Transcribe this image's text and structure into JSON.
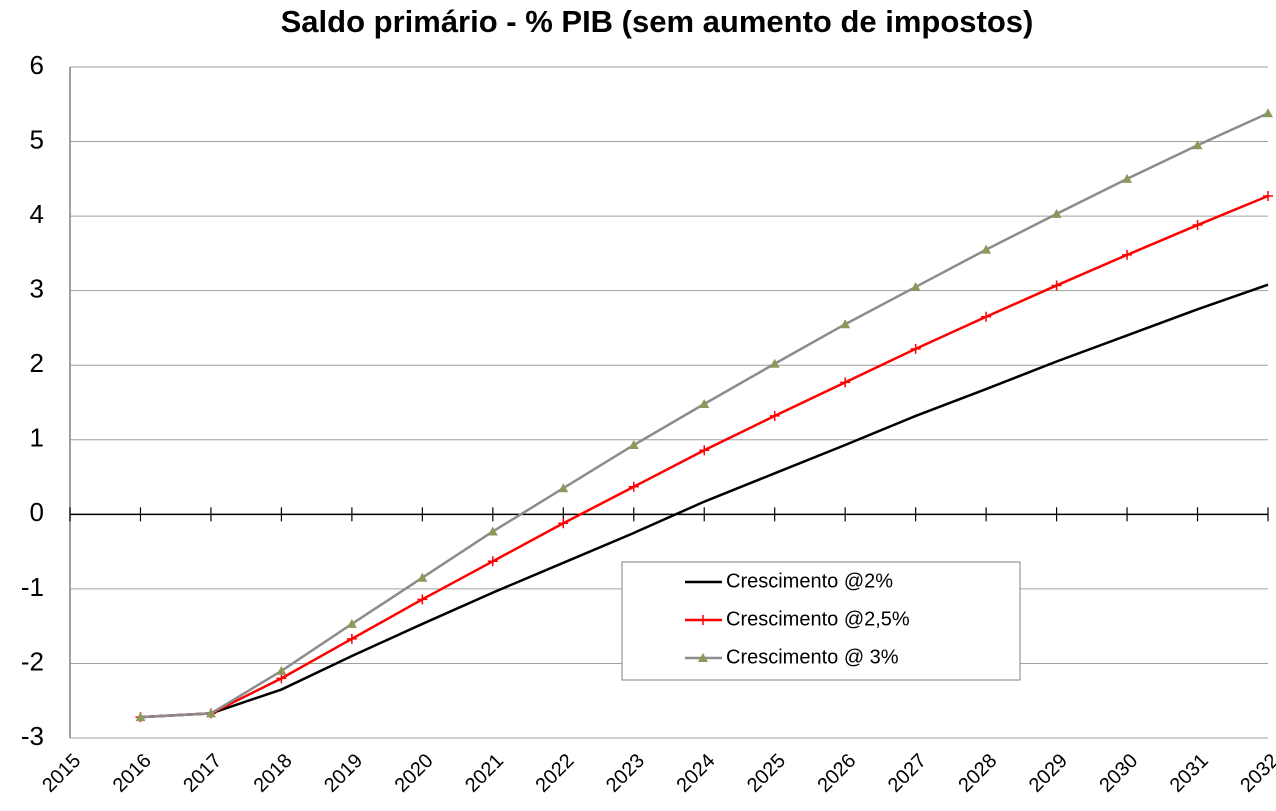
{
  "chart_data": {
    "type": "line",
    "title": "Saldo primário - % PIB (sem aumento de impostos)",
    "x": [
      2016,
      2017,
      2018,
      2019,
      2020,
      2021,
      2022,
      2023,
      2024,
      2025,
      2026,
      2027,
      2028,
      2029,
      2030,
      2031,
      2032
    ],
    "xlim": [
      2015,
      2032
    ],
    "xticks": [
      2015,
      2016,
      2017,
      2018,
      2019,
      2020,
      2021,
      2022,
      2023,
      2024,
      2025,
      2026,
      2027,
      2028,
      2029,
      2030,
      2031,
      2032
    ],
    "ylim": [
      -3,
      6
    ],
    "yticks": [
      -3,
      -2,
      -1,
      0,
      1,
      2,
      3,
      4,
      5,
      6
    ],
    "grid": true,
    "legend_position": "lower center",
    "series": [
      {
        "name": "Crescimento @2%",
        "color": "#000000",
        "marker": "none",
        "values": [
          -2.72,
          -2.67,
          -2.35,
          -1.9,
          -1.47,
          -1.05,
          -0.65,
          -0.25,
          0.17,
          0.55,
          0.93,
          1.32,
          1.68,
          2.05,
          2.4,
          2.75,
          3.08
        ]
      },
      {
        "name": "Crescimento @2,5%",
        "color": "#ff0000",
        "marker": "plus",
        "values": [
          -2.72,
          -2.67,
          -2.2,
          -1.67,
          -1.14,
          -0.63,
          -0.12,
          0.37,
          0.86,
          1.32,
          1.77,
          2.22,
          2.65,
          3.07,
          3.48,
          3.88,
          4.27
        ]
      },
      {
        "name": "Crescimento @ 3%",
        "color": "#8c8c8c",
        "marker": "triangle",
        "marker_color": "#8a9a5b",
        "values": [
          -2.72,
          -2.67,
          -2.1,
          -1.47,
          -0.85,
          -0.23,
          0.35,
          0.93,
          1.48,
          2.02,
          2.55,
          3.05,
          3.55,
          4.03,
          4.5,
          4.95,
          5.38
        ]
      }
    ]
  }
}
